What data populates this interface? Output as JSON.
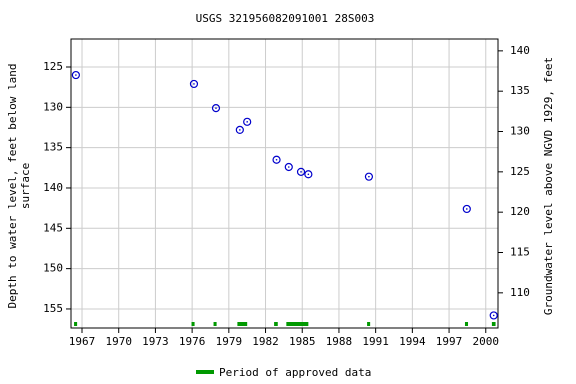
{
  "chart_data": {
    "type": "scatter",
    "title": "USGS 321956082091001 28S003",
    "ylabel": [
      "Depth to water level, feet below land",
      "surface"
    ],
    "y2label": "Groundwater level above NGVD 1929, feet",
    "x": [
      1966.5,
      1976.15,
      1977.95,
      1979.9,
      1980.5,
      1982.9,
      1983.9,
      1984.9,
      1985.5,
      1990.45,
      1998.45,
      2000.65
    ],
    "values": [
      126.0,
      127.1,
      130.1,
      132.8,
      131.8,
      136.5,
      137.4,
      138.0,
      138.3,
      138.6,
      142.6,
      155.8
    ],
    "color": "#0000cc",
    "xlim": [
      1966.1,
      2001.0
    ],
    "xticks": [
      1967,
      1970,
      1973,
      1976,
      1979,
      1982,
      1985,
      1988,
      1991,
      1994,
      1997,
      2000
    ],
    "ylim": [
      157.36,
      121.53
    ],
    "yticks": [
      125,
      130,
      135,
      140,
      145,
      150,
      155
    ],
    "y2lim": [
      105.64,
      141.47
    ],
    "y2ticks": [
      110,
      115,
      120,
      125,
      130,
      135,
      140
    ],
    "grid": true,
    "approved": {
      "name": "Period of approved data",
      "color": "#009900",
      "periods": [
        [
          1966.35,
          1966.6
        ],
        [
          1975.95,
          1976.2
        ],
        [
          1977.75,
          1978.0
        ],
        [
          1979.7,
          1980.5
        ],
        [
          1982.7,
          1983.0
        ],
        [
          1983.7,
          1985.5
        ],
        [
          1990.3,
          1990.55
        ],
        [
          1998.3,
          1998.55
        ],
        [
          2000.5,
          2000.8
        ]
      ]
    }
  }
}
